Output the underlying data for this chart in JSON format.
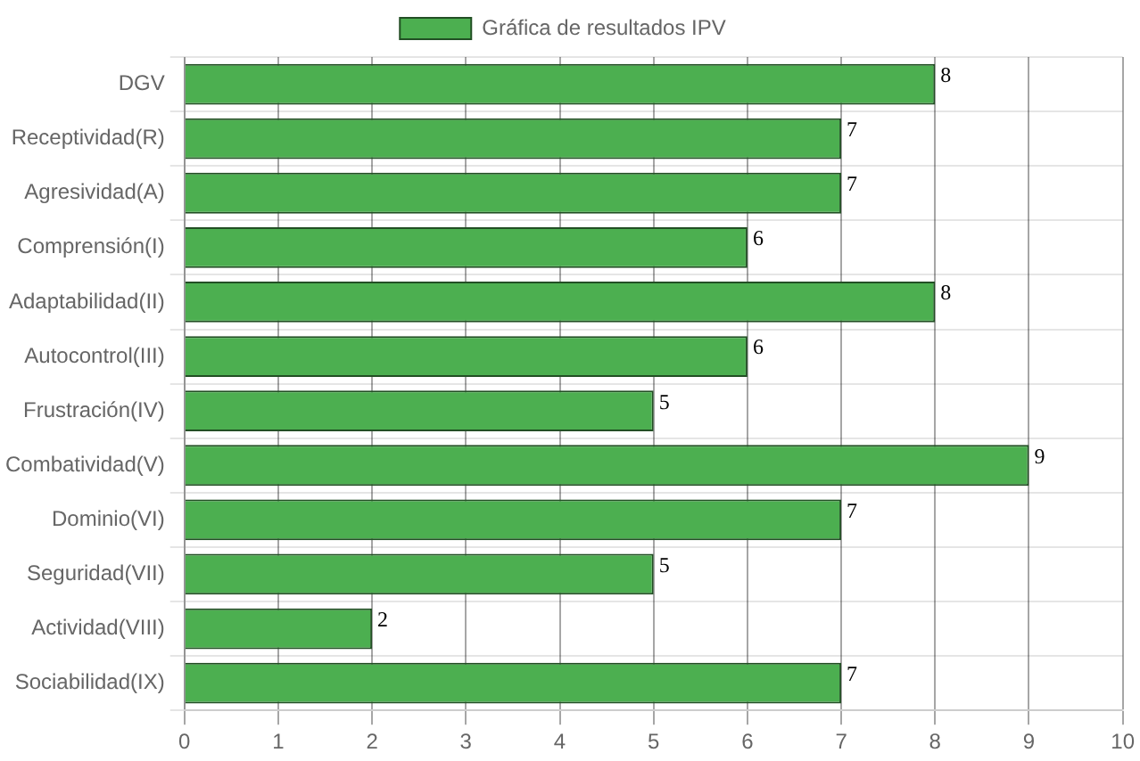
{
  "chart_data": {
    "type": "bar",
    "orientation": "horizontal",
    "categories": [
      "DGV",
      "Receptividad(R)",
      "Agresividad(A)",
      "Comprensión(I)",
      "Adaptabilidad(II)",
      "Autocontrol(III)",
      "Frustración(IV)",
      "Combatividad(V)",
      "Dominio(VI)",
      "Seguridad(VII)",
      "Actividad(VIII)",
      "Sociabilidad(IX)"
    ],
    "series": [
      {
        "name": "Gráfica de resultados IPV",
        "color": "#4caf50",
        "values": [
          8,
          7,
          7,
          6,
          8,
          6,
          5,
          9,
          7,
          5,
          2,
          7
        ]
      }
    ],
    "xlim": [
      0,
      10
    ],
    "xticks": [
      0,
      1,
      2,
      3,
      4,
      5,
      6,
      7,
      8,
      9,
      10
    ],
    "grid": true,
    "legend": "top",
    "data_labels": true
  }
}
